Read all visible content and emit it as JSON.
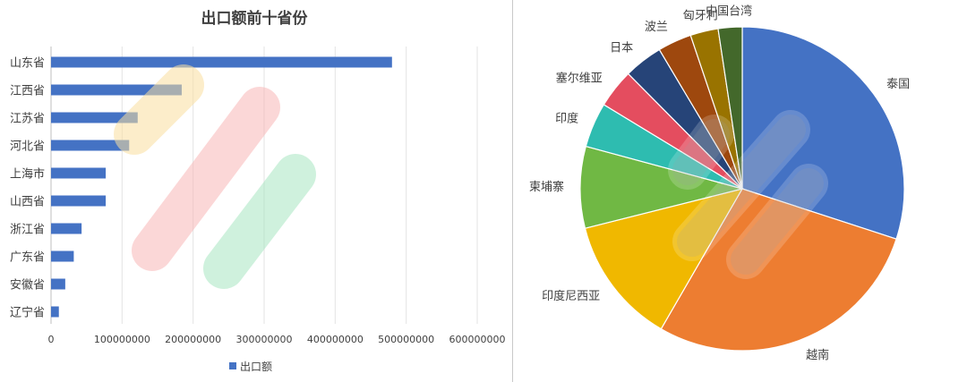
{
  "chart_data": [
    {
      "type": "bar",
      "orientation": "horizontal",
      "title": "出口额前十省份",
      "categories": [
        "山东省",
        "江西省",
        "江苏省",
        "河北省",
        "上海市",
        "山西省",
        "浙江省",
        "广东省",
        "安徽省",
        "辽宁省"
      ],
      "series": [
        {
          "name": "出口额",
          "values": [
            480000000,
            184000000,
            122000000,
            110000000,
            77000000,
            77000000,
            43000000,
            32000000,
            20000000,
            11000000
          ]
        }
      ],
      "xlim": [
        0,
        600000000
      ],
      "x_ticks": [
        "0",
        "100000000",
        "200000000",
        "300000000",
        "400000000",
        "500000000",
        "600000000"
      ],
      "grid": true,
      "legend_position": "bottom",
      "colors": {
        "bar": "#4472c4",
        "grid": "#e3e3e3",
        "text": "#404040"
      }
    },
    {
      "type": "pie",
      "labels": [
        "泰国",
        "越南",
        "印度尼西亚",
        "柬埔寨",
        "印度",
        "塞尔维亚",
        "日本",
        "波兰",
        "匈牙利",
        "中国台湾"
      ],
      "values": [
        30.2,
        28.5,
        12.8,
        8.2,
        4.5,
        3.9,
        3.9,
        3.4,
        2.8,
        2.4
      ],
      "colors": [
        "#4472c4",
        "#ed7d31",
        "#f0b800",
        "#70b844",
        "#2ebcb0",
        "#e44d5f",
        "#264478",
        "#9e480e",
        "#997300",
        "#43682b"
      ],
      "legend": "none",
      "start_angle_deg": 0,
      "direction": "clockwise"
    }
  ]
}
